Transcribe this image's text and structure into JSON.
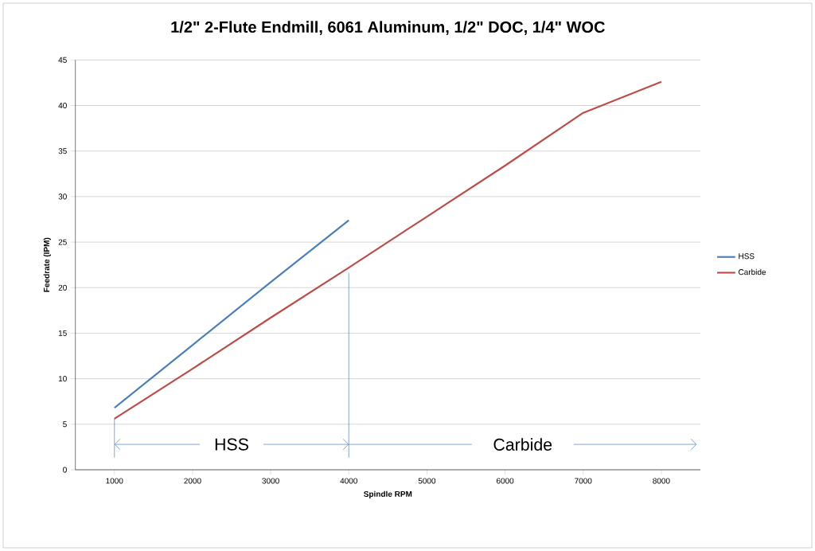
{
  "chart_data": {
    "type": "line",
    "title": "1/2\" 2-Flute Endmill, 6061 Aluminum, 1/2\" DOC, 1/4\" WOC",
    "xlabel": "Spindle RPM",
    "ylabel": "Feedrate (IPM)",
    "xlim": [
      500,
      8500
    ],
    "xticks": [
      1000,
      2000,
      3000,
      4000,
      5000,
      6000,
      7000,
      8000
    ],
    "ylim": [
      0,
      45
    ],
    "yticks": [
      0,
      5,
      10,
      15,
      20,
      25,
      30,
      35,
      40,
      45
    ],
    "grid": "y",
    "legend": "right",
    "marker": "none",
    "line_style": "solid",
    "series": [
      {
        "name": "HSS",
        "color": "#4a7ebb",
        "x": [
          1000,
          2000,
          3000,
          4000
        ],
        "values": [
          6.8,
          13.7,
          20.6,
          27.4
        ]
      },
      {
        "name": "Carbide",
        "color": "#be4b48",
        "x": [
          1000,
          2000,
          3000,
          4000,
          5000,
          6000,
          7000,
          8000
        ],
        "values": [
          5.6,
          11.1,
          16.7,
          22.2,
          27.8,
          33.4,
          39.2,
          42.6
        ]
      }
    ],
    "annotations": [
      "HSS",
      "Carbide"
    ]
  }
}
